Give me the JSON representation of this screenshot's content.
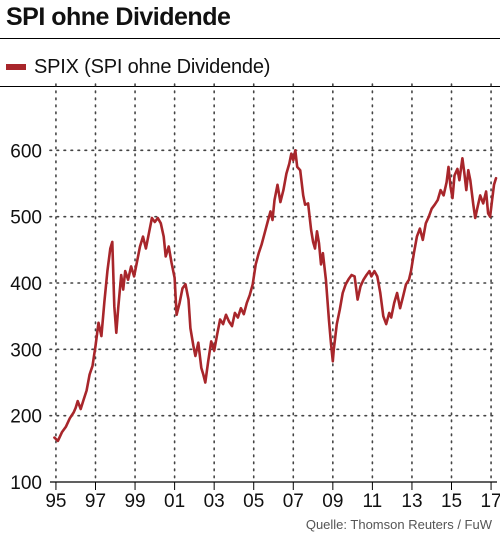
{
  "header": {
    "title": "SPI ohne Dividende"
  },
  "legend": {
    "label": "SPIX (SPI ohne Dividende)"
  },
  "footer": {
    "source": "Quelle: Thomson Reuters / FuW"
  },
  "colors": {
    "series": "#a8262b",
    "grid": "#444444",
    "axis": "#000000"
  },
  "chart_data": {
    "type": "line",
    "title": "SPI ohne Dividende",
    "xlabel": "",
    "ylabel": "",
    "xlim": [
      1994.7,
      2017.3
    ],
    "ylim": [
      100,
      700
    ],
    "grid": true,
    "legend_position": "top-left",
    "y_ticks": [
      100,
      200,
      300,
      400,
      500,
      600
    ],
    "x_ticks": [
      {
        "value": 1995,
        "label": "95"
      },
      {
        "value": 1997,
        "label": "97"
      },
      {
        "value": 1999,
        "label": "99"
      },
      {
        "value": 2001,
        "label": "01"
      },
      {
        "value": 2003,
        "label": "03"
      },
      {
        "value": 2005,
        "label": "05"
      },
      {
        "value": 2007,
        "label": "07"
      },
      {
        "value": 2009,
        "label": "09"
      },
      {
        "value": 2011,
        "label": "11"
      },
      {
        "value": 2013,
        "label": "13"
      },
      {
        "value": 2015,
        "label": "15"
      },
      {
        "value": 2017,
        "label": "17"
      }
    ],
    "series": [
      {
        "name": "SPIX (SPI ohne Dividende)",
        "points": [
          [
            1994.92,
            167
          ],
          [
            1995.1,
            162
          ],
          [
            1995.3,
            175
          ],
          [
            1995.5,
            183
          ],
          [
            1995.7,
            196
          ],
          [
            1995.9,
            205
          ],
          [
            1996.0,
            212
          ],
          [
            1996.1,
            222
          ],
          [
            1996.25,
            210
          ],
          [
            1996.4,
            224
          ],
          [
            1996.55,
            238
          ],
          [
            1996.7,
            262
          ],
          [
            1996.85,
            275
          ],
          [
            1997.0,
            305
          ],
          [
            1997.15,
            340
          ],
          [
            1997.3,
            320
          ],
          [
            1997.45,
            372
          ],
          [
            1997.6,
            418
          ],
          [
            1997.75,
            452
          ],
          [
            1997.85,
            462
          ],
          [
            1997.95,
            365
          ],
          [
            1998.05,
            325
          ],
          [
            1998.15,
            362
          ],
          [
            1998.3,
            412
          ],
          [
            1998.4,
            390
          ],
          [
            1998.5,
            418
          ],
          [
            1998.65,
            405
          ],
          [
            1998.8,
            425
          ],
          [
            1998.95,
            410
          ],
          [
            1999.1,
            432
          ],
          [
            1999.25,
            455
          ],
          [
            1999.4,
            470
          ],
          [
            1999.55,
            452
          ],
          [
            1999.7,
            475
          ],
          [
            1999.85,
            498
          ],
          [
            2000.0,
            492
          ],
          [
            2000.15,
            498
          ],
          [
            2000.3,
            490
          ],
          [
            2000.45,
            470
          ],
          [
            2000.55,
            440
          ],
          [
            2000.7,
            455
          ],
          [
            2000.85,
            430
          ],
          [
            2001.0,
            408
          ],
          [
            2001.1,
            352
          ],
          [
            2001.25,
            370
          ],
          [
            2001.4,
            392
          ],
          [
            2001.55,
            398
          ],
          [
            2001.7,
            375
          ],
          [
            2001.8,
            332
          ],
          [
            2001.95,
            305
          ],
          [
            2002.05,
            290
          ],
          [
            2002.2,
            310
          ],
          [
            2002.35,
            272
          ],
          [
            2002.45,
            262
          ],
          [
            2002.55,
            250
          ],
          [
            2002.7,
            282
          ],
          [
            2002.85,
            312
          ],
          [
            2003.0,
            298
          ],
          [
            2003.15,
            322
          ],
          [
            2003.3,
            345
          ],
          [
            2003.45,
            338
          ],
          [
            2003.6,
            352
          ],
          [
            2003.75,
            342
          ],
          [
            2003.9,
            335
          ],
          [
            2004.05,
            355
          ],
          [
            2004.2,
            348
          ],
          [
            2004.35,
            362
          ],
          [
            2004.5,
            353
          ],
          [
            2004.65,
            370
          ],
          [
            2004.8,
            382
          ],
          [
            2004.95,
            398
          ],
          [
            2005.1,
            428
          ],
          [
            2005.25,
            445
          ],
          [
            2005.4,
            458
          ],
          [
            2005.55,
            475
          ],
          [
            2005.7,
            492
          ],
          [
            2005.85,
            508
          ],
          [
            2005.95,
            495
          ],
          [
            2006.05,
            525
          ],
          [
            2006.2,
            548
          ],
          [
            2006.35,
            522
          ],
          [
            2006.5,
            540
          ],
          [
            2006.65,
            565
          ],
          [
            2006.8,
            580
          ],
          [
            2006.9,
            595
          ],
          [
            2007.0,
            585
          ],
          [
            2007.1,
            600
          ],
          [
            2007.2,
            575
          ],
          [
            2007.35,
            570
          ],
          [
            2007.5,
            532
          ],
          [
            2007.6,
            518
          ],
          [
            2007.75,
            520
          ],
          [
            2007.9,
            480
          ],
          [
            2008.0,
            462
          ],
          [
            2008.1,
            452
          ],
          [
            2008.2,
            478
          ],
          [
            2008.3,
            460
          ],
          [
            2008.4,
            428
          ],
          [
            2008.5,
            445
          ],
          [
            2008.65,
            405
          ],
          [
            2008.8,
            345
          ],
          [
            2008.9,
            310
          ],
          [
            2009.0,
            282
          ],
          [
            2009.05,
            300
          ],
          [
            2009.2,
            338
          ],
          [
            2009.35,
            360
          ],
          [
            2009.5,
            385
          ],
          [
            2009.65,
            398
          ],
          [
            2009.8,
            406
          ],
          [
            2009.95,
            412
          ],
          [
            2010.1,
            410
          ],
          [
            2010.25,
            375
          ],
          [
            2010.4,
            395
          ],
          [
            2010.55,
            405
          ],
          [
            2010.7,
            412
          ],
          [
            2010.85,
            418
          ],
          [
            2010.95,
            410
          ],
          [
            2011.1,
            418
          ],
          [
            2011.25,
            410
          ],
          [
            2011.4,
            385
          ],
          [
            2011.55,
            350
          ],
          [
            2011.7,
            338
          ],
          [
            2011.85,
            355
          ],
          [
            2011.95,
            348
          ],
          [
            2012.1,
            370
          ],
          [
            2012.25,
            385
          ],
          [
            2012.4,
            362
          ],
          [
            2012.55,
            380
          ],
          [
            2012.7,
            398
          ],
          [
            2012.85,
            405
          ],
          [
            2012.95,
            418
          ],
          [
            2013.1,
            445
          ],
          [
            2013.25,
            470
          ],
          [
            2013.4,
            482
          ],
          [
            2013.55,
            465
          ],
          [
            2013.7,
            490
          ],
          [
            2013.85,
            500
          ],
          [
            2014.0,
            512
          ],
          [
            2014.15,
            518
          ],
          [
            2014.3,
            525
          ],
          [
            2014.45,
            540
          ],
          [
            2014.6,
            532
          ],
          [
            2014.75,
            552
          ],
          [
            2014.85,
            575
          ],
          [
            2014.95,
            545
          ],
          [
            2015.05,
            528
          ],
          [
            2015.15,
            562
          ],
          [
            2015.3,
            572
          ],
          [
            2015.4,
            555
          ],
          [
            2015.55,
            588
          ],
          [
            2015.65,
            565
          ],
          [
            2015.75,
            540
          ],
          [
            2015.85,
            570
          ],
          [
            2015.95,
            555
          ],
          [
            2016.1,
            518
          ],
          [
            2016.2,
            498
          ],
          [
            2016.3,
            512
          ],
          [
            2016.45,
            532
          ],
          [
            2016.6,
            520
          ],
          [
            2016.75,
            538
          ],
          [
            2016.85,
            505
          ],
          [
            2016.95,
            500
          ],
          [
            2017.05,
            525
          ],
          [
            2017.15,
            548
          ],
          [
            2017.25,
            558
          ]
        ]
      }
    ]
  }
}
